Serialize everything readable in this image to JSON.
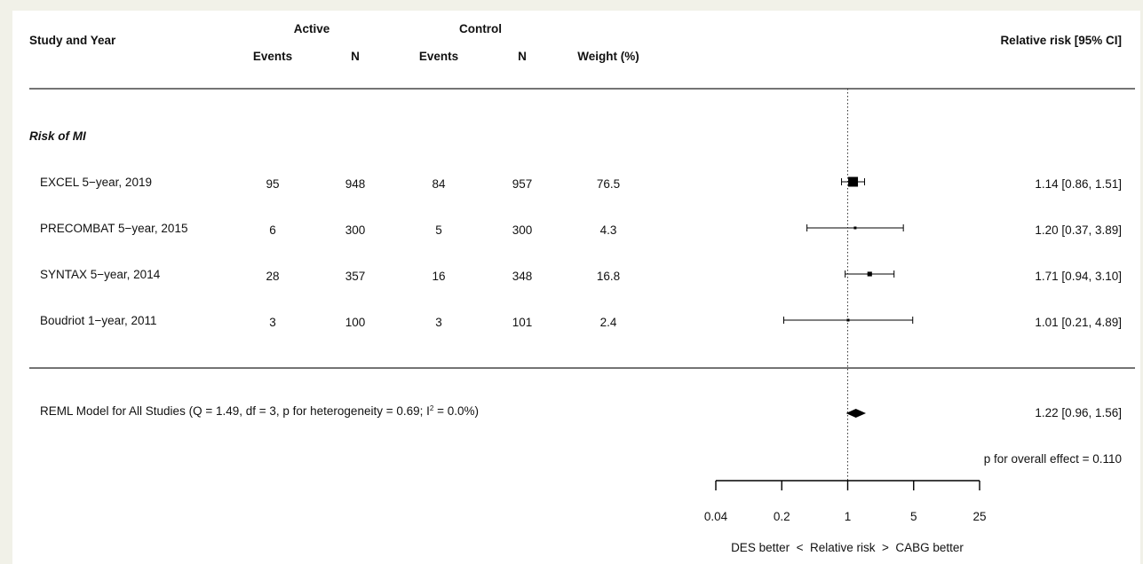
{
  "chart_data": {
    "type": "forest",
    "header": {
      "study_col": "Study and Year",
      "active_group": "Active",
      "control_group": "Control",
      "events": "Events",
      "n": "N",
      "weight": "Weight (%)",
      "estimate_col": "Relative risk [95% CI]"
    },
    "group_label": "Risk of MI",
    "studies": [
      {
        "label": "EXCEL 5−year, 2019",
        "active_events": "95",
        "active_n": "948",
        "control_events": "84",
        "control_n": "957",
        "weight": "76.5",
        "rr": 1.14,
        "lower": 0.86,
        "upper": 1.51,
        "ci_text": "1.14 [0.86, 1.51]"
      },
      {
        "label": "PRECOMBAT 5−year, 2015",
        "active_events": "6",
        "active_n": "300",
        "control_events": "5",
        "control_n": "300",
        "weight": "4.3",
        "rr": 1.2,
        "lower": 0.37,
        "upper": 3.89,
        "ci_text": "1.20 [0.37, 3.89]"
      },
      {
        "label": "SYNTAX 5−year, 2014",
        "active_events": "28",
        "active_n": "357",
        "control_events": "16",
        "control_n": "348",
        "weight": "16.8",
        "rr": 1.71,
        "lower": 0.94,
        "upper": 3.1,
        "ci_text": "1.71 [0.94, 3.10]"
      },
      {
        "label": "Boudriot 1−year, 2011",
        "active_events": "3",
        "active_n": "100",
        "control_events": "3",
        "control_n": "101",
        "weight": "2.4",
        "rr": 1.01,
        "lower": 0.21,
        "upper": 4.89,
        "ci_text": "1.01 [0.21, 4.89]"
      }
    ],
    "summary": {
      "label_prefix": "REML Model for All Studies (Q = 1.49, df = 3, p for heterogeneity = 0.69; I",
      "label_sup": "2",
      "label_suffix": " = 0.0%)",
      "rr": 1.22,
      "lower": 0.96,
      "upper": 1.56,
      "ci_text": "1.22 [0.96, 1.56]"
    },
    "overall_effect": "p for overall effect = 0.110",
    "x_axis": {
      "scale": "log",
      "ticks": [
        0.04,
        0.2,
        1,
        5,
        25
      ],
      "tick_labels": [
        "0.04",
        "0.2",
        "1",
        "5",
        "25"
      ],
      "label": "DES better  <  Relative risk  >  CABG better",
      "reference_line": 1
    }
  }
}
